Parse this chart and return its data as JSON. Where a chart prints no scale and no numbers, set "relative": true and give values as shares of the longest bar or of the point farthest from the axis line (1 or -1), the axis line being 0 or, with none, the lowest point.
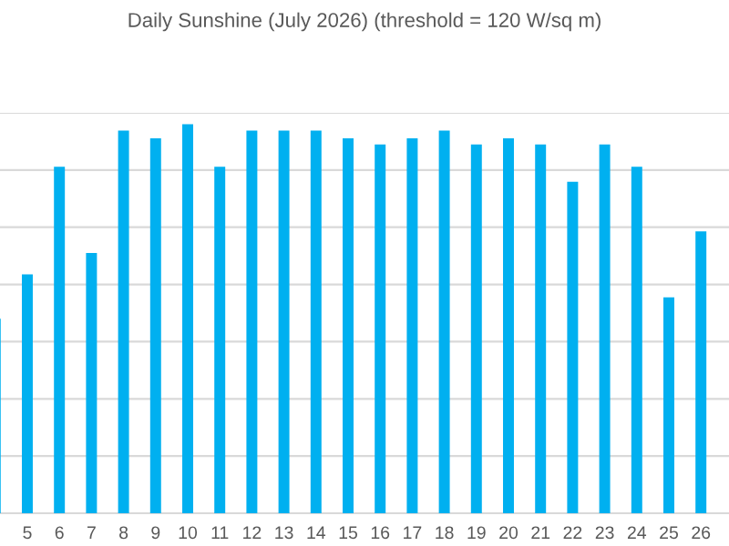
{
  "chart_data": {
    "type": "bar",
    "title": "Daily Sunshine (July 2026) (threshold = 120 W/sq m)",
    "categories": [
      null,
      "5",
      "6",
      "7",
      "8",
      "9",
      "10",
      "11",
      "12",
      "13",
      "14",
      "15",
      "16",
      "17",
      "18",
      "19",
      "20",
      "21",
      "22",
      "23",
      "24",
      "25",
      "26"
    ],
    "relative": true,
    "grid": "y",
    "series": [
      {
        "color": "#00b0f0",
        "values": [
          0.5,
          0.614,
          0.891,
          0.669,
          0.984,
          0.964,
          1,
          0.891,
          0.984,
          0.984,
          0.984,
          0.964,
          0.948,
          0.964,
          0.984,
          0.948,
          0.964,
          0.948,
          0.852,
          0.948,
          0.891,
          0.555,
          0.725
        ]
      }
    ]
  }
}
